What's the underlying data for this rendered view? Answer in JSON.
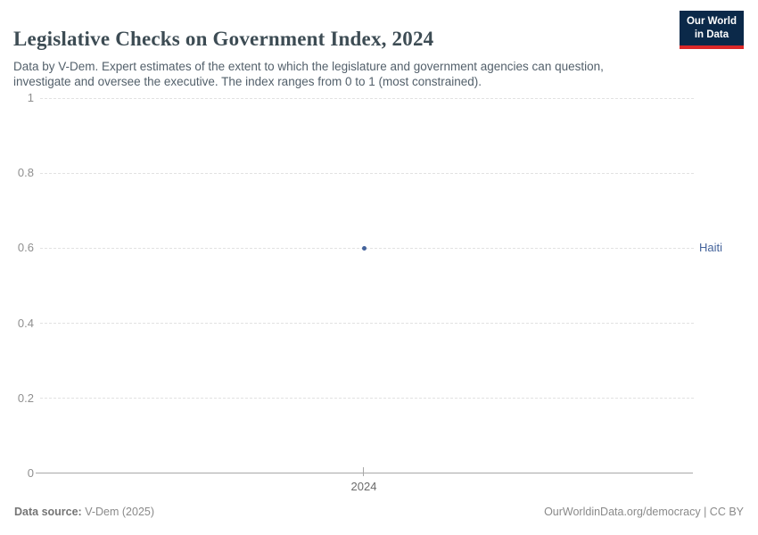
{
  "header": {
    "logo": {
      "line1": "Our World",
      "line2": "in Data",
      "bg_color": "#0b2949",
      "stripe_color": "#dc2828"
    }
  },
  "chart_data": {
    "type": "scatter",
    "title": "Legislative Checks on Government Index, 2024",
    "subtitle": "Data by V-Dem. Expert estimates of the extent to which the legislature and government agencies can question, investigate and oversee the executive. The index ranges from 0 to 1 (most constrained).",
    "x": [
      2024
    ],
    "xticks": [
      2024
    ],
    "series": [
      {
        "name": "Haiti",
        "color": "#44639b",
        "values": [
          0.6
        ]
      }
    ],
    "ylim": [
      0,
      1
    ],
    "yticks": [
      0,
      0.2,
      0.4,
      0.6,
      0.8,
      1
    ],
    "grid": "horizontal-dashed",
    "legend_position": "right-entity-label"
  },
  "footer": {
    "data_source_label": "Data source:",
    "data_source_value": " V-Dem (2025)",
    "credit": "OurWorldinData.org/democracy | CC BY"
  }
}
